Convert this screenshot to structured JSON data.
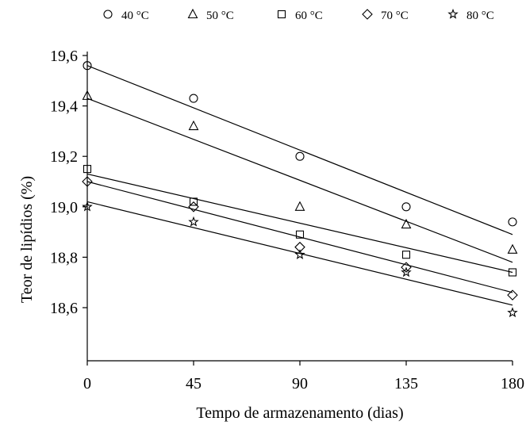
{
  "chart_data": {
    "type": "scatter",
    "xlabel": "Tempo de armazenamento (dias)",
    "ylabel": "Teor de lipídios (%)",
    "x": [
      0,
      45,
      90,
      135,
      180
    ],
    "xticks": [
      0,
      45,
      90,
      135,
      180
    ],
    "xtick_labels": [
      "0",
      "45",
      "90",
      "135",
      "180"
    ],
    "yticks": [
      18.6,
      18.8,
      19.0,
      19.2,
      19.4,
      19.6
    ],
    "ytick_labels": [
      "18,6",
      "18,8",
      "19,0",
      "19,2",
      "19,4",
      "19,6"
    ],
    "xlim": [
      0,
      180
    ],
    "ylim": [
      18.5,
      19.65
    ],
    "grid": false,
    "legend_position": "top",
    "series": [
      {
        "name": "40 °C",
        "marker": "circle",
        "values": [
          19.56,
          19.43,
          19.2,
          19.0,
          18.94
        ],
        "fit": [
          19.56,
          18.89
        ]
      },
      {
        "name": "50 °C",
        "marker": "triangle",
        "values": [
          19.44,
          19.32,
          19.0,
          18.93,
          18.83
        ],
        "fit": [
          19.43,
          18.78
        ]
      },
      {
        "name": "60 °C",
        "marker": "square",
        "values": [
          19.15,
          19.02,
          18.89,
          18.81,
          18.74
        ],
        "fit": [
          19.13,
          18.74
        ]
      },
      {
        "name": "70 °C",
        "marker": "diamond",
        "values": [
          19.1,
          19.0,
          18.84,
          18.76,
          18.65
        ],
        "fit": [
          19.1,
          18.66
        ]
      },
      {
        "name": "80 °C",
        "marker": "star",
        "values": [
          19.0,
          18.94,
          18.81,
          18.74,
          18.58
        ],
        "fit": [
          19.02,
          18.61
        ]
      }
    ]
  }
}
